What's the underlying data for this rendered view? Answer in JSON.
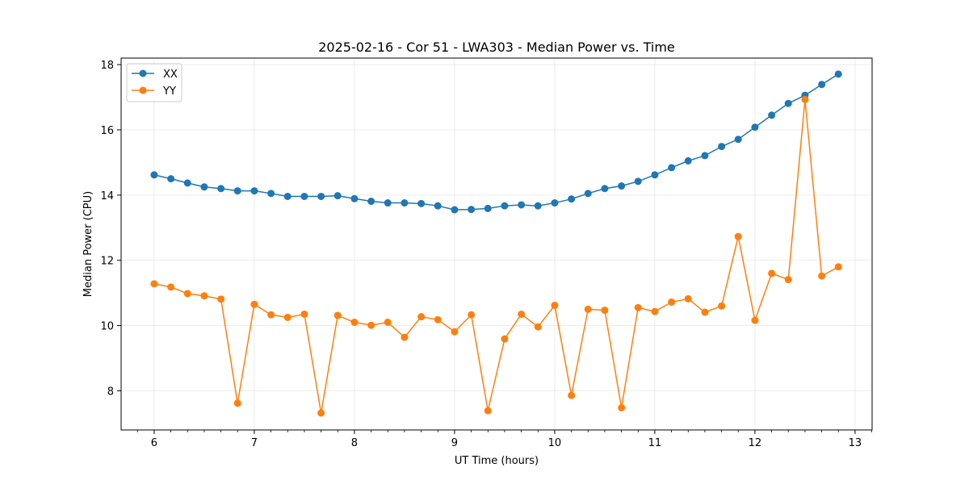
{
  "chart_data": {
    "type": "line",
    "title": "2025-02-16 - Cor 51 - LWA303 - Median Power vs. Time",
    "xlabel": "UT Time (hours)",
    "ylabel": "Median Power (CPU)",
    "xlim": [
      5.67,
      13.17
    ],
    "ylim": [
      6.8,
      18.2
    ],
    "xticks": [
      6,
      7,
      8,
      9,
      10,
      11,
      12,
      13
    ],
    "xtick_labels": [
      "6",
      "7",
      "8",
      "9",
      "10",
      "11",
      "12",
      "13"
    ],
    "yticks": [
      8,
      10,
      12,
      14,
      16,
      18
    ],
    "ytick_labels": [
      "8",
      "10",
      "12",
      "14",
      "16",
      "18"
    ],
    "grid": true,
    "legend_position": "top-left",
    "x": [
      6.0,
      6.167,
      6.333,
      6.5,
      6.667,
      6.833,
      7.0,
      7.167,
      7.333,
      7.5,
      7.667,
      7.833,
      8.0,
      8.167,
      8.333,
      8.5,
      8.667,
      8.833,
      9.0,
      9.167,
      9.333,
      9.5,
      9.667,
      9.833,
      10.0,
      10.167,
      10.333,
      10.5,
      10.667,
      10.833,
      11.0,
      11.167,
      11.333,
      11.5,
      11.667,
      11.833,
      12.0,
      12.167,
      12.333,
      12.5,
      12.667,
      12.833
    ],
    "series": [
      {
        "name": "XX",
        "color": "#1f77b4",
        "values": [
          14.62,
          14.5,
          14.37,
          14.25,
          14.2,
          14.13,
          14.13,
          14.05,
          13.96,
          13.96,
          13.96,
          13.98,
          13.89,
          13.81,
          13.76,
          13.76,
          13.74,
          13.67,
          13.55,
          13.56,
          13.59,
          13.67,
          13.7,
          13.67,
          13.76,
          13.88,
          14.05,
          14.2,
          14.28,
          14.42,
          14.62,
          14.84,
          15.05,
          15.21,
          15.49,
          15.71,
          16.08,
          16.45,
          16.81,
          17.06,
          17.39,
          17.71
        ]
      },
      {
        "name": "YY",
        "color": "#ff7f0e",
        "values": [
          11.28,
          11.18,
          10.98,
          10.91,
          10.81,
          7.62,
          10.65,
          10.33,
          10.25,
          10.35,
          7.32,
          10.31,
          10.1,
          10.01,
          10.1,
          9.64,
          10.27,
          10.18,
          9.81,
          10.33,
          7.39,
          9.59,
          10.35,
          9.96,
          10.62,
          7.86,
          10.5,
          10.47,
          7.48,
          10.55,
          10.43,
          10.72,
          10.82,
          10.41,
          10.6,
          12.73,
          10.16,
          11.6,
          11.41,
          16.93,
          11.52,
          11.8
        ]
      }
    ]
  }
}
